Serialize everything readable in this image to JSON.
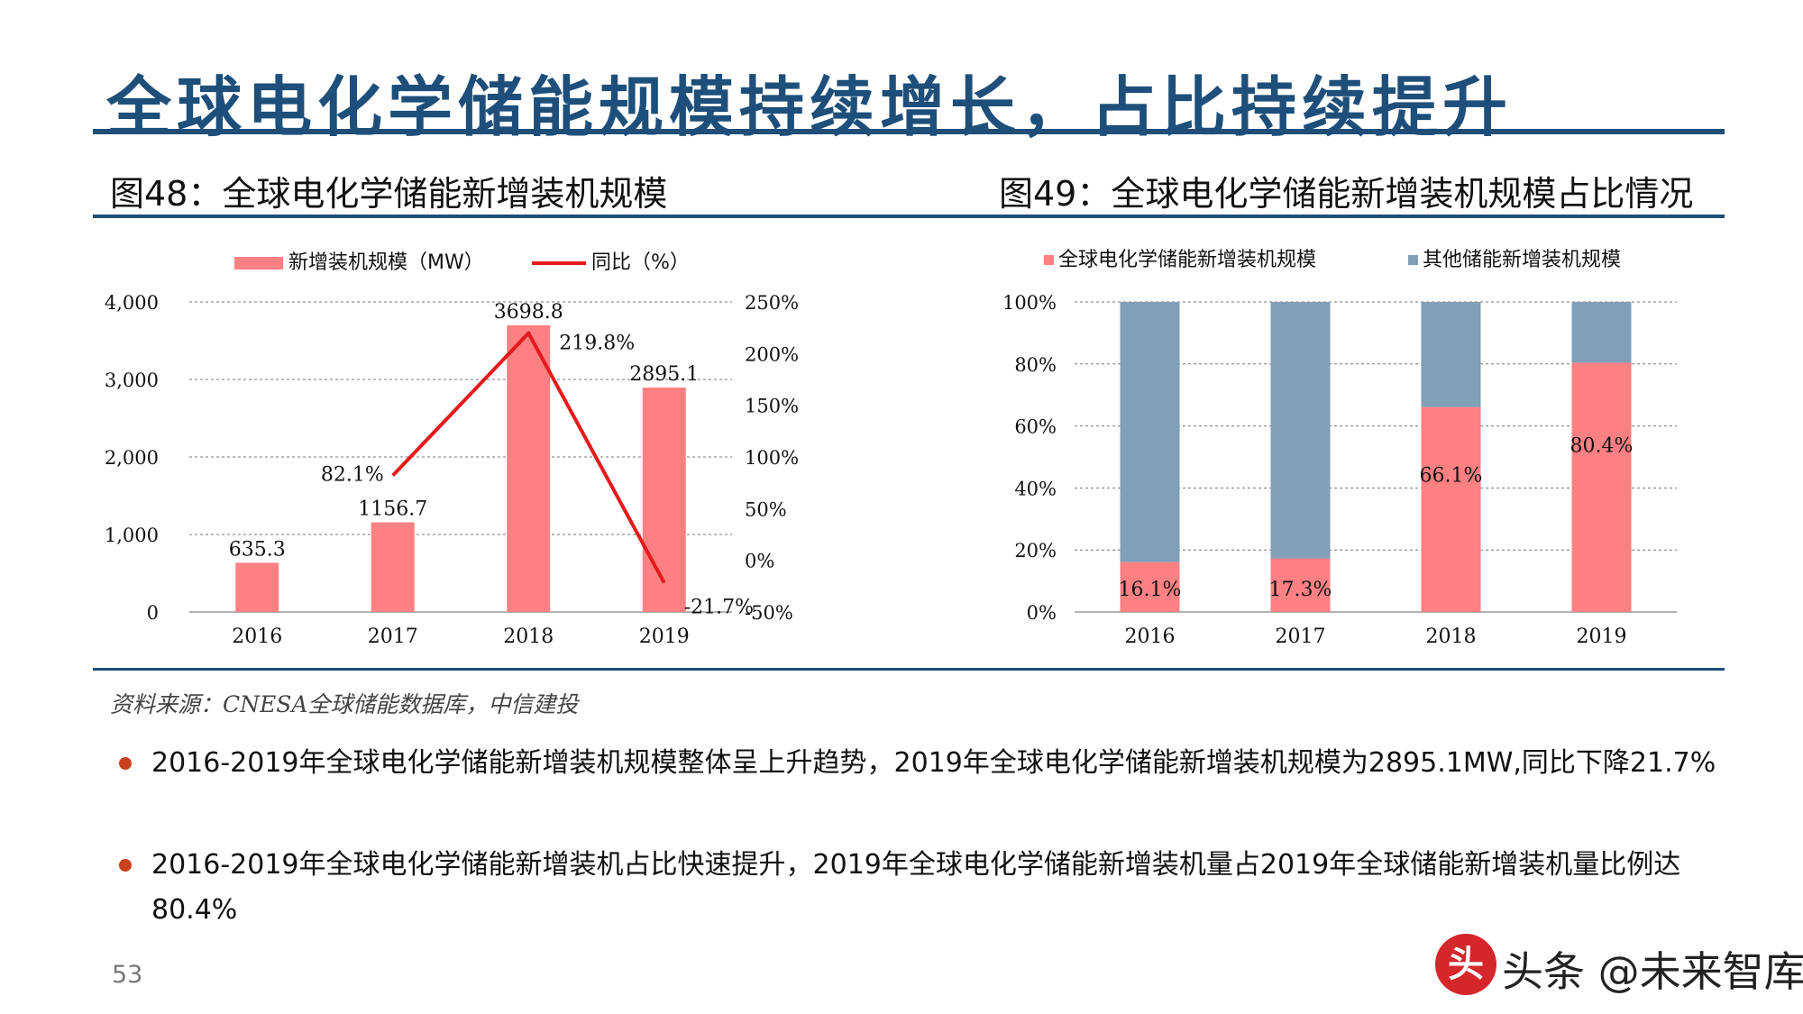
{
  "header": {
    "title": "全球电化学储能规模持续增长，占比持续提升"
  },
  "fig48": {
    "title": "图48：全球电化学储能新增装机规模",
    "chart_data": {
      "type": "bar",
      "categories": [
        "2016",
        "2017",
        "2018",
        "2019"
      ],
      "series": [
        {
          "name": "新增装机规模（MW）",
          "type": "bar",
          "axis": "left",
          "values": [
            635.3,
            1156.7,
            3698.8,
            2895.1
          ],
          "labels": [
            "635.3",
            "1156.7",
            "3698.8",
            "2895.1"
          ],
          "color": "#fd8083"
        },
        {
          "name": "同比（%）",
          "type": "line",
          "axis": "right",
          "values": [
            null,
            82.1,
            219.8,
            -21.7
          ],
          "labels": [
            "",
            "82.1%",
            "219.8%",
            "-21.7%"
          ],
          "color": "#e41a1c"
        }
      ],
      "ylim_left": [
        0,
        4000
      ],
      "yticks_left": [
        "0",
        "1,000",
        "2,000",
        "3,000",
        "4,000"
      ],
      "ylim_right": [
        -50,
        250
      ],
      "yticks_right": [
        "-50%",
        "0%",
        "50%",
        "100%",
        "150%",
        "200%",
        "250%"
      ],
      "grid": true,
      "legend": "top"
    }
  },
  "fig49": {
    "title": "图49：全球电化学储能新增装机规模占比情况",
    "chart_data": {
      "type": "bar",
      "stacked": true,
      "categories": [
        "2016",
        "2017",
        "2018",
        "2019"
      ],
      "series": [
        {
          "name": "全球电化学储能新增装机规模",
          "values": [
            16.1,
            17.3,
            66.1,
            80.4
          ],
          "labels": [
            "16.1%",
            "17.3%",
            "66.1%",
            "80.4%"
          ],
          "color": "#fd8083"
        },
        {
          "name": "其他储能新增装机规模",
          "values": [
            83.9,
            82.7,
            33.9,
            19.6
          ],
          "color": "#809fb8"
        }
      ],
      "ylim": [
        0,
        100
      ],
      "yticks": [
        "0%",
        "20%",
        "40%",
        "60%",
        "80%",
        "100%"
      ],
      "grid": true,
      "legend": "top"
    }
  },
  "source": "资料来源：CNESA全球储能数据库，中信建投",
  "bullets": [
    "2016-2019年全球电化学储能新增装机规模整体呈上升趋势，2019年全球电化学储能新增装机规模为2895.1MW,同比下降21.7%",
    "2016-2019年全球电化学储能新增装机占比快速提升，2019年全球电化学储能新增装机量占2019年全球储能新增装机量比例达80.4%"
  ],
  "page_number": "53",
  "watermark": {
    "seal": "头",
    "text": "头条 @未来智库"
  }
}
